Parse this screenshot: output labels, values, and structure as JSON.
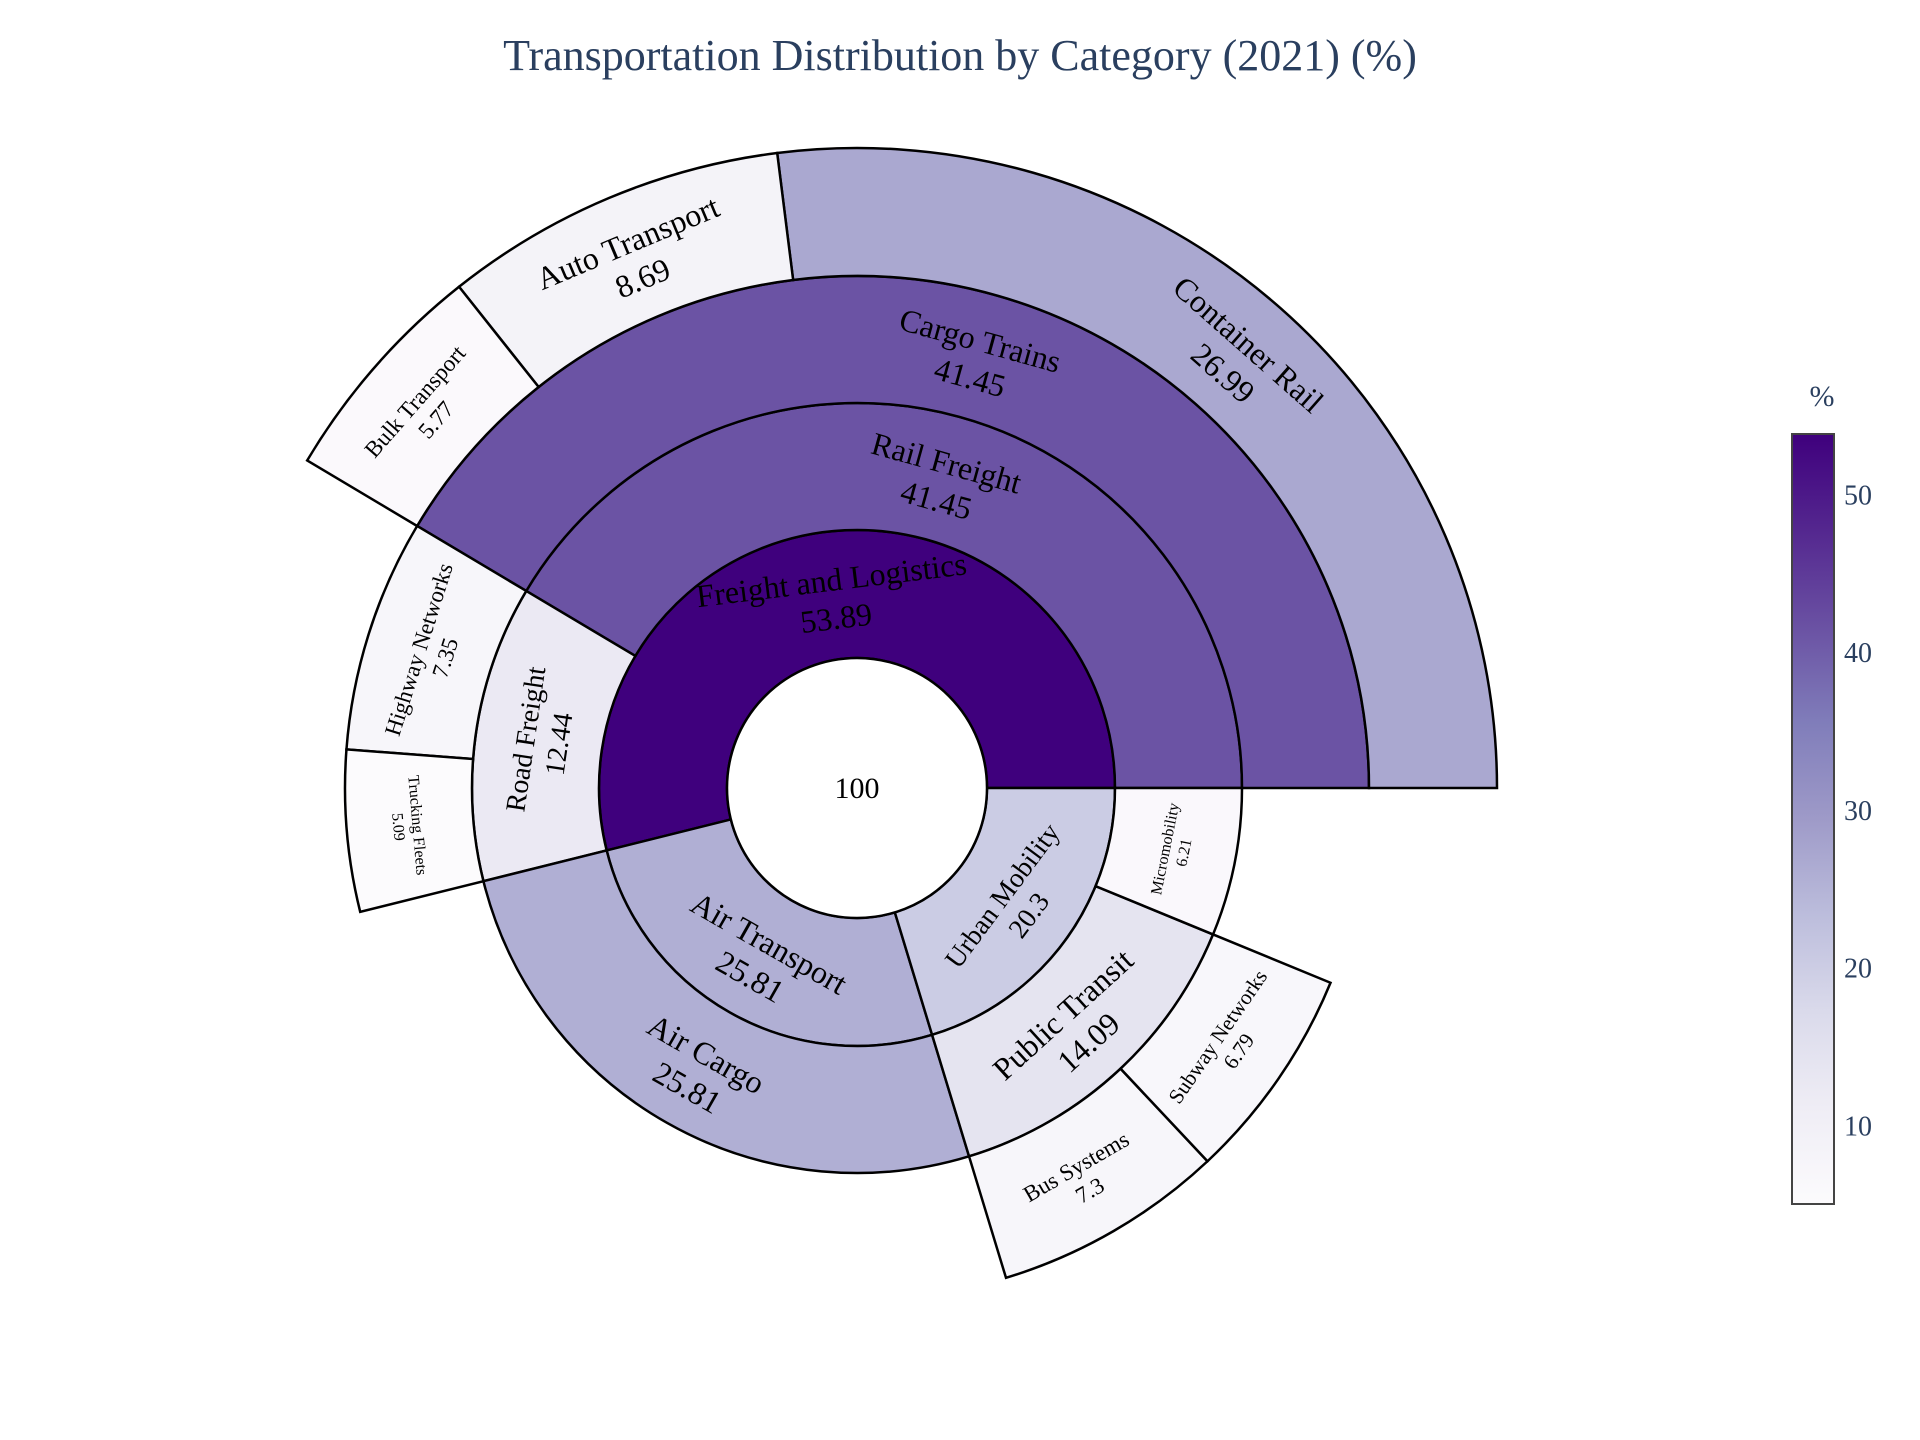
{
  "chart_data": {
    "type": "sunburst",
    "title": "Transportation Distribution by Category (2021) (%)",
    "root": {
      "label": "",
      "value": 100
    },
    "hierarchy": [
      {
        "label": "Freight and Logistics",
        "value": 53.89,
        "children": [
          {
            "label": "Rail Freight",
            "value": 41.45,
            "children": [
              {
                "label": "Cargo Trains",
                "value": 41.45,
                "children": [
                  {
                    "label": "Container Rail",
                    "value": 26.99
                  },
                  {
                    "label": "Auto Transport",
                    "value": 8.69
                  },
                  {
                    "label": "Bulk Transport",
                    "value": 5.77
                  }
                ]
              }
            ]
          },
          {
            "label": "Road Freight",
            "value": 12.44,
            "children": [
              {
                "label": "Highway Networks",
                "value": 7.35
              },
              {
                "label": "Trucking Fleets",
                "value": 5.09
              }
            ]
          }
        ]
      },
      {
        "label": "Air Transport",
        "value": 25.81,
        "children": [
          {
            "label": "Air Cargo",
            "value": 25.81
          }
        ]
      },
      {
        "label": "Urban Mobility",
        "value": 20.3,
        "children": [
          {
            "label": "Public Transit",
            "value": 14.09,
            "children": [
              {
                "label": "Bus Systems",
                "value": 7.3
              },
              {
                "label": "Subway Networks",
                "value": 6.79
              }
            ]
          },
          {
            "label": "Micromobility",
            "value": 6.21
          }
        ]
      }
    ],
    "colorscale": "Purples",
    "color_range": [
      5.09,
      53.89
    ],
    "colorbar": {
      "title": "%",
      "ticks": [
        10,
        20,
        30,
        40,
        50
      ]
    }
  }
}
